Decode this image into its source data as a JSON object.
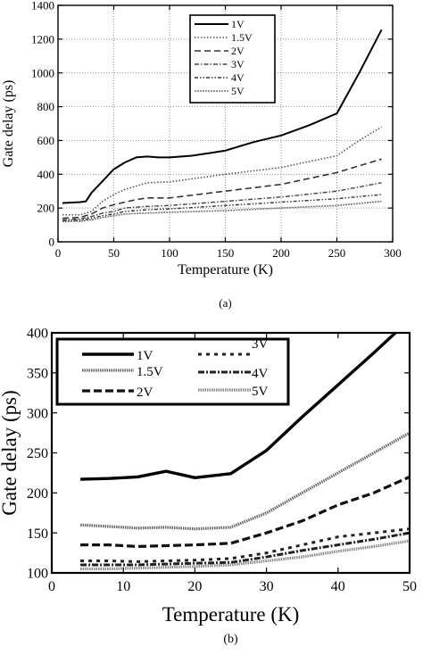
{
  "chart_data": [
    {
      "type": "line",
      "caption": "(a)",
      "xlabel": "Temperature (K)",
      "ylabel": "Gate delay (ps)",
      "xlim": [
        0,
        300
      ],
      "ylim": [
        0,
        1400
      ],
      "xticks": [
        0,
        50,
        100,
        150,
        200,
        250,
        300
      ],
      "yticks": [
        0,
        200,
        400,
        600,
        800,
        1000,
        1200,
        1400
      ],
      "grid": true,
      "legend": "top-center",
      "series": [
        {
          "name": "1V",
          "x": [
            4,
            10,
            20,
            25,
            30,
            40,
            50,
            60,
            70,
            80,
            90,
            100,
            120,
            140,
            150,
            175,
            200,
            225,
            250,
            270,
            290
          ],
          "y": [
            230,
            232,
            235,
            240,
            290,
            360,
            430,
            470,
            500,
            505,
            500,
            500,
            510,
            530,
            540,
            590,
            630,
            690,
            760,
            1000,
            1255
          ]
        },
        {
          "name": "1.5V",
          "x": [
            4,
            20,
            30,
            40,
            50,
            60,
            70,
            80,
            100,
            150,
            200,
            250,
            270,
            290
          ],
          "y": [
            160,
            160,
            180,
            240,
            280,
            310,
            330,
            350,
            355,
            400,
            440,
            510,
            600,
            680
          ]
        },
        {
          "name": "2V",
          "x": [
            4,
            20,
            30,
            40,
            50,
            60,
            70,
            80,
            100,
            150,
            200,
            250,
            270,
            290
          ],
          "y": [
            140,
            145,
            165,
            200,
            220,
            235,
            250,
            260,
            260,
            300,
            340,
            410,
            450,
            490
          ]
        },
        {
          "name": "3V",
          "x": [
            4,
            20,
            30,
            40,
            50,
            60,
            80,
            100,
            150,
            200,
            250,
            290
          ],
          "y": [
            130,
            135,
            150,
            170,
            180,
            200,
            210,
            215,
            240,
            265,
            300,
            350
          ]
        },
        {
          "name": "4V",
          "x": [
            4,
            20,
            30,
            40,
            50,
            60,
            80,
            100,
            150,
            200,
            250,
            290
          ],
          "y": [
            125,
            128,
            140,
            155,
            165,
            180,
            190,
            195,
            215,
            235,
            255,
            280
          ]
        },
        {
          "name": "5V",
          "x": [
            4,
            20,
            30,
            40,
            50,
            60,
            80,
            100,
            150,
            200,
            250,
            290
          ],
          "y": [
            120,
            122,
            130,
            145,
            155,
            165,
            170,
            175,
            185,
            200,
            215,
            240
          ]
        }
      ]
    },
    {
      "type": "line",
      "caption": "(b)",
      "xlabel": "Temperature (K)",
      "ylabel": "Gate delay (ps)",
      "xlim": [
        0,
        50
      ],
      "ylim": [
        100,
        400
      ],
      "xticks": [
        0,
        10,
        20,
        30,
        40,
        50
      ],
      "yticks": [
        100,
        150,
        200,
        250,
        300,
        350,
        400
      ],
      "grid": false,
      "legend": "top-left",
      "series": [
        {
          "name": "1V",
          "x": [
            4,
            8,
            12,
            16,
            20,
            25,
            30,
            35,
            40,
            45,
            48
          ],
          "y": [
            217,
            218,
            220,
            227,
            219,
            224,
            253,
            295,
            335,
            375,
            400
          ]
        },
        {
          "name": "1.5V",
          "x": [
            4,
            8,
            12,
            16,
            20,
            25,
            30,
            35,
            40,
            45,
            50
          ],
          "y": [
            160,
            158,
            156,
            157,
            155,
            157,
            175,
            200,
            225,
            250,
            275
          ]
        },
        {
          "name": "2V",
          "x": [
            4,
            8,
            12,
            16,
            20,
            25,
            30,
            35,
            40,
            45,
            50
          ],
          "y": [
            135,
            135,
            133,
            134,
            135,
            137,
            150,
            165,
            185,
            200,
            220
          ]
        },
        {
          "name": "3V",
          "x": [
            4,
            8,
            12,
            16,
            20,
            25,
            30,
            35,
            40,
            45,
            50
          ],
          "y": [
            115,
            115,
            114,
            115,
            116,
            118,
            125,
            135,
            145,
            150,
            155
          ]
        },
        {
          "name": "4V",
          "x": [
            4,
            8,
            12,
            16,
            20,
            25,
            30,
            35,
            40,
            45,
            50
          ],
          "y": [
            110,
            110,
            110,
            111,
            112,
            113,
            120,
            128,
            135,
            142,
            150
          ]
        },
        {
          "name": "5V",
          "x": [
            4,
            8,
            12,
            16,
            20,
            25,
            30,
            35,
            40,
            45,
            50
          ],
          "y": [
            105,
            105,
            106,
            107,
            108,
            110,
            115,
            120,
            127,
            133,
            140
          ]
        }
      ]
    }
  ]
}
